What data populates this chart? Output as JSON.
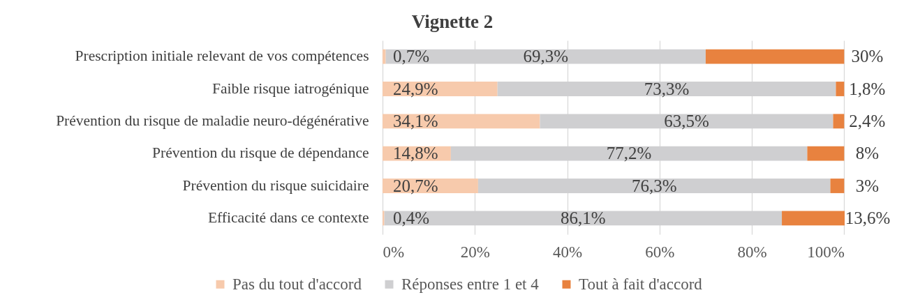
{
  "chart_data": {
    "type": "bar",
    "title": "Vignette 2",
    "orientation": "horizontal",
    "stacked": true,
    "categories": [
      "Prescription initiale relevant de vos compétences",
      "Faible risque iatrogénique",
      "Prévention du risque de maladie neuro-dégénérative",
      "Prévention du risque de dépendance",
      "Prévention du risque suicidaire",
      "Efficacité dans ce contexte"
    ],
    "series": [
      {
        "name": "Pas du tout d'accord",
        "color": "#f7caac",
        "values": [
          0.7,
          24.9,
          34.1,
          14.8,
          20.7,
          0.4
        ],
        "value_labels": [
          "0,7%",
          "24,9%",
          "34,1%",
          "14,8%",
          "20,7%",
          "0,4%"
        ]
      },
      {
        "name": "Réponses entre 1 et 4",
        "color": "#cfcfd1",
        "values": [
          69.3,
          73.3,
          63.5,
          77.2,
          76.3,
          86.1
        ],
        "value_labels": [
          "69,3%",
          "73,3%",
          "63,5%",
          "77,2%",
          "76,3%",
          "86,1%"
        ]
      },
      {
        "name": "Tout à fait d'accord",
        "color": "#e8823f",
        "values": [
          30,
          1.8,
          2.4,
          8,
          3,
          13.6
        ],
        "value_labels": [
          "30%",
          "1,8%",
          "2,4%",
          "8%",
          "3%",
          "13,6%"
        ]
      }
    ],
    "xlim": [
      0,
      100.1
    ],
    "xticks": [
      {
        "value": 0,
        "label": "0%"
      },
      {
        "value": 20,
        "label": "20%"
      },
      {
        "value": 40,
        "label": "40%"
      },
      {
        "value": 60,
        "label": "60%"
      },
      {
        "value": 80,
        "label": "80%"
      },
      {
        "value": 100,
        "label": "100%"
      }
    ],
    "grid": "x",
    "legend": "bottom"
  }
}
